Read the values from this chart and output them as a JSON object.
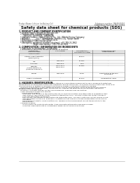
{
  "background_color": "#ffffff",
  "header_left": "Product Name: Lithium Ion Battery Cell",
  "header_right_line1": "Substance number: 1N648-00010",
  "header_right_line2": "Established / Revision: Dec.1.2016",
  "title": "Safety data sheet for chemical products (SDS)",
  "section1_title": "1. PRODUCT AND COMPANY IDENTIFICATION",
  "section1_lines": [
    "  • Product name: Lithium Ion Battery Cell",
    "  • Product code: Cylindrical-type cell",
    "       18650SU, 18Y18650L, 18Y-B650A",
    "  • Company name:    Sanyo Electric Co., Ltd., Mobile Energy Company",
    "  • Address:          200-1  Kamitakami, Sumoto-City, Hyogo, Japan",
    "  • Telephone number:   +81-799-26-4111",
    "  • Fax number:  +81-799-26-4120",
    "  • Emergency telephone number (daytime): +81-799-26-2662",
    "                       (Night and holiday): +81-799-26-4101"
  ],
  "section2_title": "2. COMPOSITION / INFORMATION ON INGREDIENTS",
  "section2_intro": "  • Substance or preparation: Preparation",
  "section2_sub": "  • Information about the chemical nature of product",
  "section3_title": "3. HAZARDS IDENTIFICATION",
  "section3_lines": [
    "For the battery cell, chemical materials are stored in a hermetically-sealed metal case, designed to withstand",
    "temperatures by preventing electrolyte-combustion during normal use. As a result, during normal use, there is no",
    "physical danger of ignition or explosion and there is danger of hazardous materials leakage.",
    "   However, if exposed to a fire, added mechanical shocks, decomposed, short-circuit abuse/any misuse,",
    "the gas inside cannot be operated. The battery cell case will be breached at the extreme, hazardous",
    "materials may be released.",
    "   Moreover, if heated strongly by the surrounding fire, solid gas may be emitted."
  ],
  "section3_bullet1_title": "  • Most important hazard and effects:",
  "section3_bullet1_lines": [
    "     Human health effects:",
    "       Inhalation: The release of the electrolyte has an anesthesia action and stimulates in respiratory tract.",
    "       Skin contact: The release of the electrolyte stimulates a skin. The electrolyte skin contact causes a",
    "       sore and stimulation on the skin.",
    "       Eye contact: The release of the electrolyte stimulates eyes. The electrolyte eye contact causes a sore",
    "       and stimulation on the eye. Especially, a substance that causes a strong inflammation of the eyes is",
    "       contained.",
    "       Environmental effects: Since a battery cell remains in the environment, do not throw out it into the",
    "       environment."
  ],
  "section3_bullet2_title": "  • Specific hazards:",
  "section3_bullet2_lines": [
    "       If the electrolyte contacts with water, it will generate detrimental hydrogen fluoride.",
    "       Since the used electrolyte is inflammable liquid, do not bring close to fire."
  ],
  "table_rows": [
    [
      "Several name",
      "-",
      "",
      ""
    ],
    [
      "Lithium cobalt tantalate",
      "-",
      "30-60%",
      "-"
    ],
    [
      "(LiMnCo(PO4))",
      "",
      "",
      ""
    ],
    [
      "Iron",
      "7439-89-6",
      "15-25%",
      "-"
    ],
    [
      "Aluminum",
      "7429-90-5",
      "2-6%",
      "-"
    ],
    [
      "Graphite",
      "-",
      "10-25%",
      "-"
    ],
    [
      "(Anode graphite-1)",
      "17440-42-3",
      "",
      ""
    ],
    [
      "(Cathode graphite-2)",
      "17440-44-2",
      "",
      ""
    ],
    [
      "Copper",
      "7440-50-8",
      "5-15%",
      "Sensitization of the skin"
    ],
    [
      "",
      "",
      "",
      "group No.2"
    ],
    [
      "Organic electrolyte",
      "-",
      "10-20%",
      "Inflammatory liquid"
    ]
  ]
}
